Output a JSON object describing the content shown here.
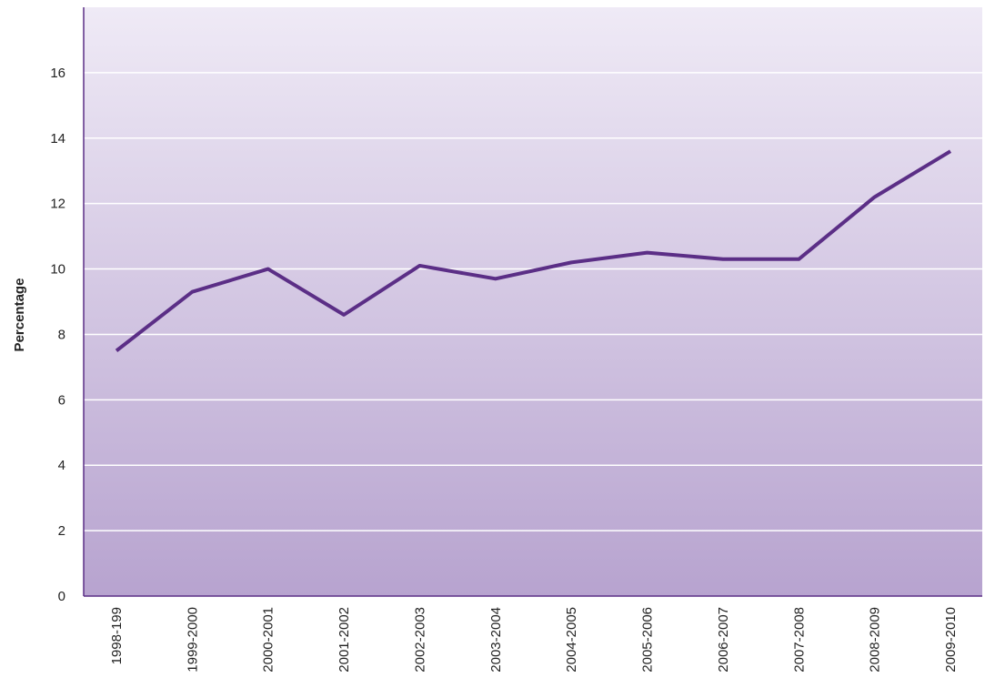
{
  "chart_data": {
    "type": "line",
    "y_label": "Percentage",
    "categories": [
      "1998-199",
      "1999-2000",
      "2000-2001",
      "2001-2002",
      "2002-2003",
      "2003-2004",
      "2004-2005",
      "2005-2006",
      "2006-2007",
      "2007-2008",
      "2008-2009",
      "2009-2010"
    ],
    "series": [
      {
        "name": "Percentage",
        "color": "#5b2e86",
        "values": [
          7.5,
          9.3,
          10.0,
          8.6,
          10.1,
          9.7,
          10.2,
          10.5,
          10.3,
          10.3,
          12.2,
          13.6
        ]
      }
    ],
    "ylim": [
      0,
      18
    ],
    "yticks": [
      0,
      2,
      4,
      6,
      8,
      10,
      12,
      14,
      16
    ],
    "grid": true
  }
}
